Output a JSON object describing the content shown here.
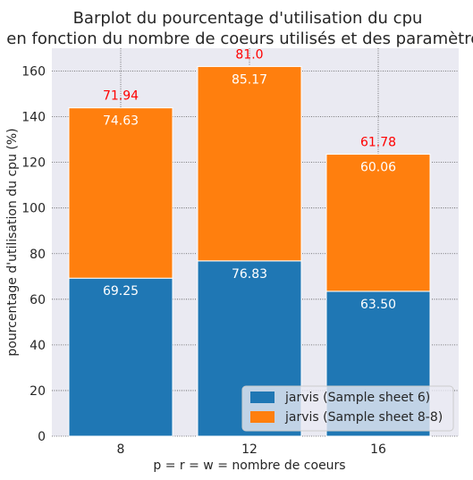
{
  "chart_data": {
    "type": "bar",
    "stacked": true,
    "title_line1": "Barplot du pourcentage d'utilisation du cpu",
    "title_line2": "en fonction du nombre de coeurs utilisés et des paramètres",
    "xlabel": "p = r = w = nombre de coeurs",
    "ylabel": "pourcentage d'utilisation du cpu (%)",
    "categories": [
      "8",
      "12",
      "16"
    ],
    "ylim": [
      0,
      170
    ],
    "yticks": [
      "0",
      "20",
      "40",
      "60",
      "80",
      "100",
      "120",
      "140",
      "160"
    ],
    "grid": true,
    "series": [
      {
        "name": "jarvis (Sample sheet 6)",
        "color": "#1f77b4",
        "values": [
          69.25,
          76.83,
          63.5
        ],
        "labels": [
          "69.25",
          "76.83",
          "63.50"
        ]
      },
      {
        "name": "jarvis (Sample sheet 8-8)",
        "color": "#ff7f0e",
        "values": [
          74.63,
          85.17,
          60.06
        ],
        "labels": [
          "74.63",
          "85.17",
          "60.06"
        ]
      }
    ],
    "top_annotations": {
      "color": "#ff0000",
      "labels": [
        "71.94",
        "81.0",
        "61.78"
      ]
    },
    "legend_position": "lower-right",
    "background_color": "#eaeaf2"
  }
}
